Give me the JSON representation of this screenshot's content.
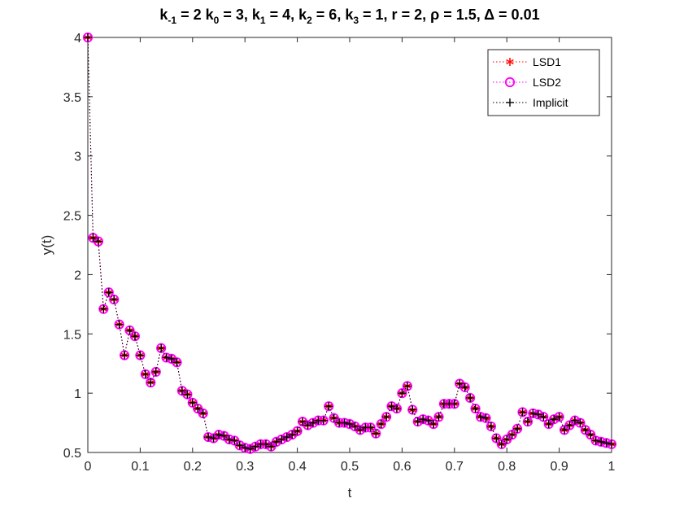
{
  "chart_data": {
    "type": "line",
    "title_parts": [
      {
        "t": "k",
        "sub": "-1",
        "after": " = 2 "
      },
      {
        "t": "k",
        "sub": "0",
        "after": " = 3, "
      },
      {
        "t": "k",
        "sub": "1",
        "after": " = 4, "
      },
      {
        "t": "k",
        "sub": "2",
        "after": " = 6, "
      },
      {
        "t": "k",
        "sub": "3",
        "after": " = 1, r = 2, "
      },
      {
        "t": "ρ",
        "sub": "",
        "after": " = 1.5, "
      },
      {
        "t": "Δ",
        "sub": "",
        "after": " = 0.01"
      }
    ],
    "xlabel": "t",
    "ylabel": "y(t)",
    "xlim": [
      0,
      1
    ],
    "ylim": [
      0.5,
      4
    ],
    "x_ticks": [
      "0",
      "0.1",
      "0.2",
      "0.3",
      "0.4",
      "0.5",
      "0.6",
      "0.7",
      "0.8",
      "0.9",
      "1"
    ],
    "y_ticks": [
      "0.5",
      "1",
      "1.5",
      "2",
      "2.5",
      "3",
      "3.5",
      "4"
    ],
    "grid": false,
    "legend_position": "top-right",
    "x_start": 0,
    "x_step": 0.01,
    "series": [
      {
        "name": "LSD1",
        "color": "#ff0000",
        "marker": "asterisk",
        "line": "dotted"
      },
      {
        "name": "LSD2",
        "color": "#ff00ff",
        "marker": "circle",
        "line": "dotted"
      },
      {
        "name": "Implicit",
        "color": "#000000",
        "marker": "plus",
        "line": "dotted"
      }
    ],
    "values": [
      4.0,
      2.31,
      2.28,
      1.71,
      1.85,
      1.79,
      1.58,
      1.32,
      1.53,
      1.48,
      1.32,
      1.16,
      1.09,
      1.18,
      1.38,
      1.3,
      1.29,
      1.26,
      1.02,
      0.99,
      0.92,
      0.87,
      0.83,
      0.63,
      0.62,
      0.65,
      0.64,
      0.61,
      0.6,
      0.56,
      0.54,
      0.53,
      0.55,
      0.57,
      0.57,
      0.55,
      0.59,
      0.61,
      0.63,
      0.65,
      0.68,
      0.76,
      0.73,
      0.75,
      0.77,
      0.77,
      0.89,
      0.79,
      0.75,
      0.75,
      0.74,
      0.72,
      0.69,
      0.71,
      0.71,
      0.66,
      0.74,
      0.8,
      0.89,
      0.87,
      1.0,
      1.06,
      0.86,
      0.76,
      0.78,
      0.77,
      0.74,
      0.8,
      0.91,
      0.91,
      0.91,
      1.08,
      1.05,
      0.96,
      0.87,
      0.8,
      0.79,
      0.72,
      0.62,
      0.57,
      0.61,
      0.65,
      0.7,
      0.84,
      0.76,
      0.83,
      0.82,
      0.8,
      0.74,
      0.78,
      0.8,
      0.69,
      0.73,
      0.77,
      0.75,
      0.69,
      0.65,
      0.6,
      0.59,
      0.58,
      0.57
    ]
  }
}
